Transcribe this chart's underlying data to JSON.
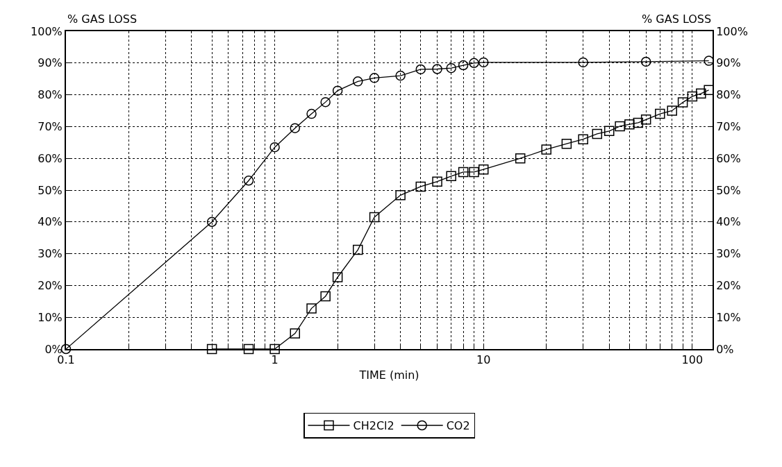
{
  "chart_data": {
    "type": "line",
    "xlabel": "TIME (min)",
    "ylabel": "% GAS LOSS",
    "y2label": "% GAS LOSS",
    "log": "x",
    "grid": true,
    "legend": "bottom",
    "xlim": [
      0.1,
      125
    ],
    "xticks": [
      {
        "value": 0.1,
        "label": "0.1"
      },
      {
        "value": 0.2,
        "label": null
      },
      {
        "value": 0.3,
        "label": null
      },
      {
        "value": 0.4,
        "label": null
      },
      {
        "value": 0.5,
        "label": null
      },
      {
        "value": 0.6,
        "label": null
      },
      {
        "value": 0.7,
        "label": null
      },
      {
        "value": 0.8,
        "label": null
      },
      {
        "value": 0.9,
        "label": null
      },
      1,
      {
        "value": 2,
        "label": null
      },
      {
        "value": 3,
        "label": null
      },
      {
        "value": 4,
        "label": null
      },
      {
        "value": 5,
        "label": null
      },
      {
        "value": 6,
        "label": null
      },
      {
        "value": 7,
        "label": null
      },
      {
        "value": 8,
        "label": null
      },
      {
        "value": 9,
        "label": null
      },
      10,
      {
        "value": 20,
        "label": null
      },
      {
        "value": 30,
        "label": null
      },
      {
        "value": 40,
        "label": null
      },
      {
        "value": 50,
        "label": null
      },
      {
        "value": 60,
        "label": null
      },
      {
        "value": 70,
        "label": null
      },
      {
        "value": 80,
        "label": null
      },
      {
        "value": 90,
        "label": null
      },
      100
    ],
    "ylim": [
      0,
      100
    ],
    "yticks": [
      {
        "value": 0,
        "label": "0%"
      },
      {
        "value": 10,
        "label": "10%"
      },
      {
        "value": 20,
        "label": "20%"
      },
      {
        "value": 30,
        "label": "30%"
      },
      {
        "value": 40,
        "label": "40%"
      },
      {
        "value": 50,
        "label": "50%"
      },
      {
        "value": 60,
        "label": "60%"
      },
      {
        "value": 70,
        "label": "70%"
      },
      {
        "value": 80,
        "label": "80%"
      },
      {
        "value": 90,
        "label": "90%"
      },
      {
        "value": 100,
        "label": "100%"
      }
    ],
    "y2lim": [
      0,
      100
    ],
    "y2ticks": [
      {
        "value": 0,
        "label": "0%"
      },
      {
        "value": 10,
        "label": "10%"
      },
      {
        "value": 20,
        "label": "20%"
      },
      {
        "value": 30,
        "label": "30%"
      },
      {
        "value": 40,
        "label": "40%"
      },
      {
        "value": 50,
        "label": "50%"
      },
      {
        "value": 60,
        "label": "60%"
      },
      {
        "value": 70,
        "label": "70%"
      },
      {
        "value": 80,
        "label": "80%"
      },
      {
        "value": 90,
        "label": "90%"
      },
      {
        "value": 100,
        "label": "100%"
      }
    ],
    "line_style": "solid",
    "series": [
      {
        "name": "CH2Cl2",
        "color": "#000000",
        "marker": "square",
        "x": [
          0.5,
          0.75,
          1,
          1.25,
          1.5,
          1.75,
          2,
          2.5,
          3,
          4,
          5,
          6,
          7,
          8,
          9,
          10,
          15,
          20,
          25,
          30,
          35,
          40,
          45,
          50,
          55,
          60,
          70,
          80,
          90,
          100,
          110,
          120
        ],
        "values": [
          0,
          0,
          0,
          4.9,
          12.8,
          16.6,
          22.6,
          31.2,
          41.5,
          48.4,
          51.1,
          52.7,
          54.4,
          55.7,
          55.7,
          56.5,
          60,
          62.8,
          64.6,
          66,
          67.7,
          68.6,
          70.1,
          70.7,
          71.2,
          72.2,
          74,
          75,
          77.6,
          79.5,
          80.4,
          81.5
        ]
      },
      {
        "name": "CO2",
        "color": "#000000",
        "marker": "circle",
        "x": [
          0.1,
          0.5,
          0.75,
          1,
          1.25,
          1.5,
          1.75,
          2,
          2.5,
          3,
          4,
          5,
          6,
          7,
          8,
          9,
          10,
          30,
          60,
          120
        ],
        "values": [
          0,
          40,
          53,
          63.5,
          69.5,
          74,
          77.7,
          81.3,
          84.2,
          85.3,
          86,
          88,
          88.1,
          88.4,
          89.3,
          90,
          90.2,
          90.2,
          90.4,
          90.7
        ]
      }
    ]
  }
}
